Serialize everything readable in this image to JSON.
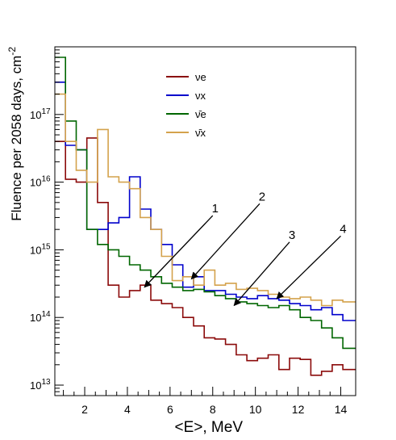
{
  "chart_data": {
    "type": "line",
    "step": true,
    "xlabel": "<E>, MeV",
    "ylabel": "Fluence per 2058 days, cm",
    "ylabel_sup": "-2",
    "xlim": [
      0.6,
      14.7
    ],
    "ylim": [
      7000000000000.0,
      1e+18
    ],
    "yscale": "log",
    "grid": false,
    "legend_position": "top-center",
    "x_ticks": [
      2,
      4,
      6,
      8,
      10,
      12,
      14
    ],
    "y_ticks": [
      {
        "value": 10000000000000.0,
        "base": "10",
        "exp": "13"
      },
      {
        "value": 100000000000000.0,
        "base": "10",
        "exp": "14"
      },
      {
        "value": 1000000000000000.0,
        "base": "10",
        "exp": "15"
      },
      {
        "value": 1e+16,
        "base": "10",
        "exp": "16"
      },
      {
        "value": 1e+17,
        "base": "10",
        "exp": "17"
      }
    ],
    "bin_edges": [
      0.6,
      1.1,
      1.6,
      2.1,
      2.6,
      3.1,
      3.6,
      4.1,
      4.6,
      5.1,
      5.6,
      6.1,
      6.6,
      7.1,
      7.6,
      8.1,
      8.6,
      9.1,
      9.6,
      10.1,
      10.6,
      11.1,
      11.6,
      12.1,
      12.6,
      13.1,
      13.6,
      14.1,
      14.7
    ],
    "series": [
      {
        "name": "νe",
        "color": "#8b0a0a",
        "values": [
          4e+16,
          1.1e+16,
          1e+16,
          4.5e+16,
          5000000000000000.0,
          300000000000000.0,
          200000000000000.0,
          250000000000000.0,
          300000000000000.0,
          180000000000000.0,
          160000000000000.0,
          140000000000000.0,
          100000000000000.0,
          75000000000000.0,
          50000000000000.0,
          48000000000000.0,
          40000000000000.0,
          28000000000000.0,
          23000000000000.0,
          25000000000000.0,
          28000000000000.0,
          17000000000000.0,
          25000000000000.0,
          24000000000000.0,
          14000000000000.0,
          16000000000000.0,
          20000000000000.0,
          17000000000000.0
        ]
      },
      {
        "name": "νx",
        "color": "#0000cc",
        "values": [
          3e+17,
          3.5e+16,
          3e+16,
          2000000000000000.0,
          2000000000000000.0,
          2500000000000000.0,
          3000000000000000.0,
          1.2e+16,
          4000000000000000.0,
          2000000000000000.0,
          1200000000000000.0,
          600000000000000.0,
          280000000000000.0,
          400000000000000.0,
          250000000000000.0,
          250000000000000.0,
          220000000000000.0,
          200000000000000.0,
          190000000000000.0,
          210000000000000.0,
          190000000000000.0,
          180000000000000.0,
          160000000000000.0,
          150000000000000.0,
          130000000000000.0,
          140000000000000.0,
          110000000000000.0,
          90000000000000.0
        ]
      },
      {
        "name": "ν̄e",
        "color": "#006600",
        "values": [
          7e+17,
          8e+16,
          3e+16,
          2000000000000000.0,
          1200000000000000.0,
          1000000000000000.0,
          800000000000000.0,
          600000000000000.0,
          500000000000000.0,
          400000000000000.0,
          320000000000000.0,
          280000000000000.0,
          250000000000000.0,
          260000000000000.0,
          240000000000000.0,
          210000000000000.0,
          190000000000000.0,
          170000000000000.0,
          160000000000000.0,
          150000000000000.0,
          140000000000000.0,
          150000000000000.0,
          130000000000000.0,
          100000000000000.0,
          90000000000000.0,
          70000000000000.0,
          50000000000000.0,
          35000000000000.0
        ]
      },
      {
        "name": "ν̄x",
        "color": "#d4a24c",
        "values": [
          2e+17,
          4e+16,
          1.5e+16,
          1e+16,
          6e+16,
          1.2e+16,
          1e+16,
          8000000000000000.0,
          3000000000000000.0,
          2000000000000000.0,
          800000000000000.0,
          350000000000000.0,
          400000000000000.0,
          300000000000000.0,
          500000000000000.0,
          300000000000000.0,
          320000000000000.0,
          260000000000000.0,
          270000000000000.0,
          250000000000000.0,
          220000000000000.0,
          200000000000000.0,
          190000000000000.0,
          200000000000000.0,
          180000000000000.0,
          150000000000000.0,
          180000000000000.0,
          170000000000000.0
        ]
      }
    ],
    "annotations": [
      {
        "label": "1",
        "tip": [
          4.8,
          280000000000000.0
        ],
        "tail": [
          8.0,
          3200000000000000.0
        ]
      },
      {
        "label": "2",
        "tip": [
          7.0,
          370000000000000.0
        ],
        "tail": [
          10.2,
          4800000000000000.0
        ]
      },
      {
        "label": "3",
        "tip": [
          9.0,
          150000000000000.0
        ],
        "tail": [
          11.6,
          1300000000000000.0
        ]
      },
      {
        "label": "4",
        "tip": [
          11.0,
          190000000000000.0
        ],
        "tail": [
          14.0,
          1600000000000000.0
        ]
      }
    ]
  }
}
